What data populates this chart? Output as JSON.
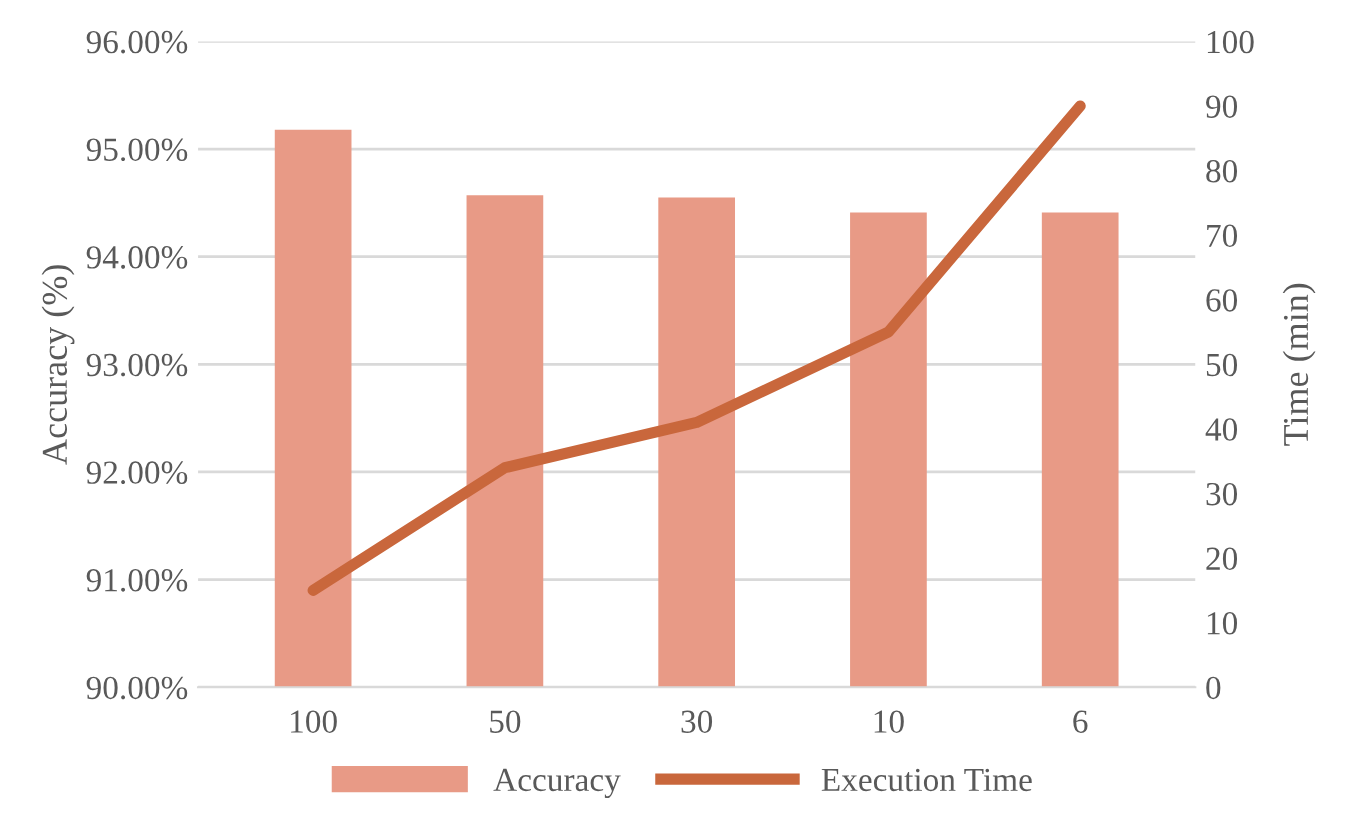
{
  "chart_data": {
    "type": "bar",
    "xlabel": null,
    "ylabel": "Accuracy (%)",
    "y2label": "Time (min)",
    "categories": [
      "100",
      "50",
      "30",
      "10",
      "6"
    ],
    "series": [
      {
        "name": "Accuracy",
        "color": "#e89a86",
        "values": [
          95.18,
          94.57,
          94.55,
          94.41,
          94.41
        ]
      },
      {
        "name": "Execution Time",
        "type": "line",
        "axis": "y2",
        "color": "#c9673c",
        "values": [
          15,
          34,
          41,
          55,
          90
        ]
      }
    ],
    "ylim": [
      90,
      96
    ],
    "yticks": [
      {
        "value": 90,
        "label": "90.00%"
      },
      {
        "value": 91,
        "label": "91.00%"
      },
      {
        "value": 92,
        "label": "92.00%"
      },
      {
        "value": 93,
        "label": "93.00%"
      },
      {
        "value": 94,
        "label": "94.00%"
      },
      {
        "value": 95,
        "label": "95.00%"
      },
      {
        "value": 96,
        "label": "96.00%"
      }
    ],
    "y2lim": [
      0,
      100
    ],
    "y2ticks": [
      0,
      10,
      20,
      30,
      40,
      50,
      60,
      70,
      80,
      90,
      100
    ],
    "grid": "y",
    "legend": "bottom",
    "marker": "none",
    "line_style": "solid"
  }
}
